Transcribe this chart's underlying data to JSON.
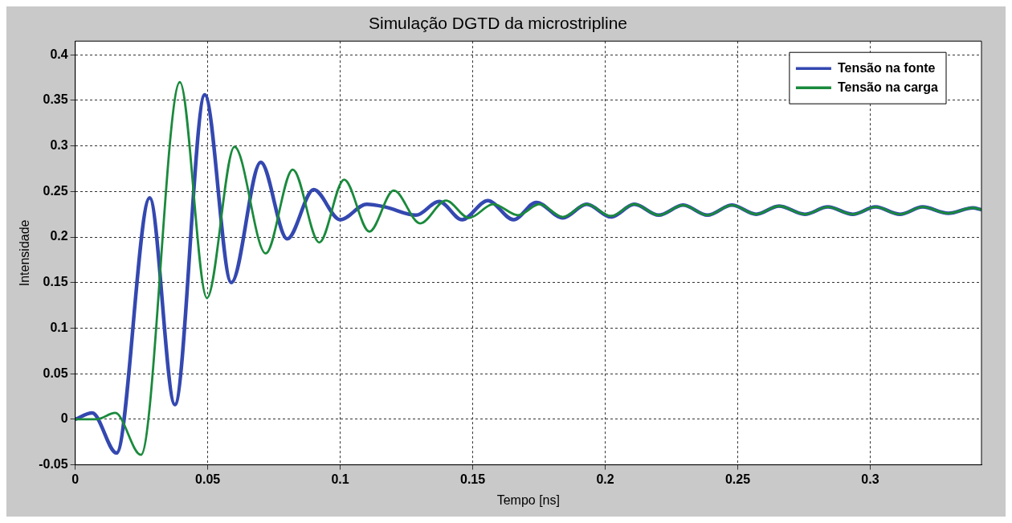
{
  "chart_data": {
    "type": "line",
    "title": "Simulação DGTD da microstripline",
    "xlabel": "Tempo [ns]",
    "ylabel": "Intensidade",
    "xlim": [
      0,
      0.342
    ],
    "xticks": [
      0,
      0.05,
      0.1,
      0.15,
      0.2,
      0.25,
      0.3
    ],
    "ylim": [
      -0.05,
      0.415
    ],
    "yticks": [
      -0.05,
      0,
      0.05,
      0.1,
      0.15,
      0.2,
      0.25,
      0.3,
      0.35,
      0.4
    ],
    "grid": true,
    "legend": "top right",
    "marker": "none",
    "line_style": "solid",
    "series": [
      {
        "name": "Tensão na fonte",
        "color": "#3448b0",
        "x": [
          0,
          0.0064,
          0.0156,
          0.0281,
          0.0376,
          0.0489,
          0.0589,
          0.07,
          0.08,
          0.09,
          0.1,
          0.11,
          0.117,
          0.1286,
          0.1373,
          0.146,
          0.1557,
          0.1654,
          0.174,
          0.184,
          0.193,
          0.2022,
          0.211,
          0.2202,
          0.2294,
          0.2386,
          0.2478,
          0.257,
          0.2656,
          0.2753,
          0.284,
          0.2934,
          0.302,
          0.3112,
          0.3198,
          0.3295,
          0.3387,
          0.342
        ],
        "values": [
          0,
          0.007,
          -0.037,
          0.243,
          0.016,
          0.356,
          0.15,
          0.282,
          0.198,
          0.252,
          0.219,
          0.236,
          0.233,
          0.224,
          0.239,
          0.219,
          0.24,
          0.219,
          0.238,
          0.221,
          0.236,
          0.222,
          0.236,
          0.224,
          0.235,
          0.224,
          0.235,
          0.225,
          0.234,
          0.225,
          0.233,
          0.225,
          0.233,
          0.225,
          0.233,
          0.226,
          0.232,
          0.23
        ]
      },
      {
        "name": "Tensão na carga",
        "color": "#1a8a3c",
        "x": [
          0,
          0.008,
          0.0151,
          0.0248,
          0.0395,
          0.0497,
          0.0601,
          0.0719,
          0.0821,
          0.0921,
          0.1015,
          0.111,
          0.1202,
          0.1302,
          0.1399,
          0.1486,
          0.1578,
          0.1671,
          0.1752,
          0.184,
          0.193,
          0.2022,
          0.211,
          0.2202,
          0.2294,
          0.2386,
          0.2478,
          0.257,
          0.2656,
          0.2753,
          0.284,
          0.2934,
          0.302,
          0.3112,
          0.3198,
          0.3295,
          0.3387,
          0.342
        ],
        "values": [
          0,
          0,
          0.007,
          -0.039,
          0.37,
          0.133,
          0.299,
          0.182,
          0.274,
          0.194,
          0.263,
          0.206,
          0.251,
          0.215,
          0.24,
          0.221,
          0.236,
          0.224,
          0.236,
          0.222,
          0.236,
          0.223,
          0.236,
          0.224,
          0.235,
          0.224,
          0.235,
          0.225,
          0.234,
          0.225,
          0.233,
          0.225,
          0.233,
          0.225,
          0.233,
          0.226,
          0.232,
          0.23
        ]
      }
    ]
  }
}
